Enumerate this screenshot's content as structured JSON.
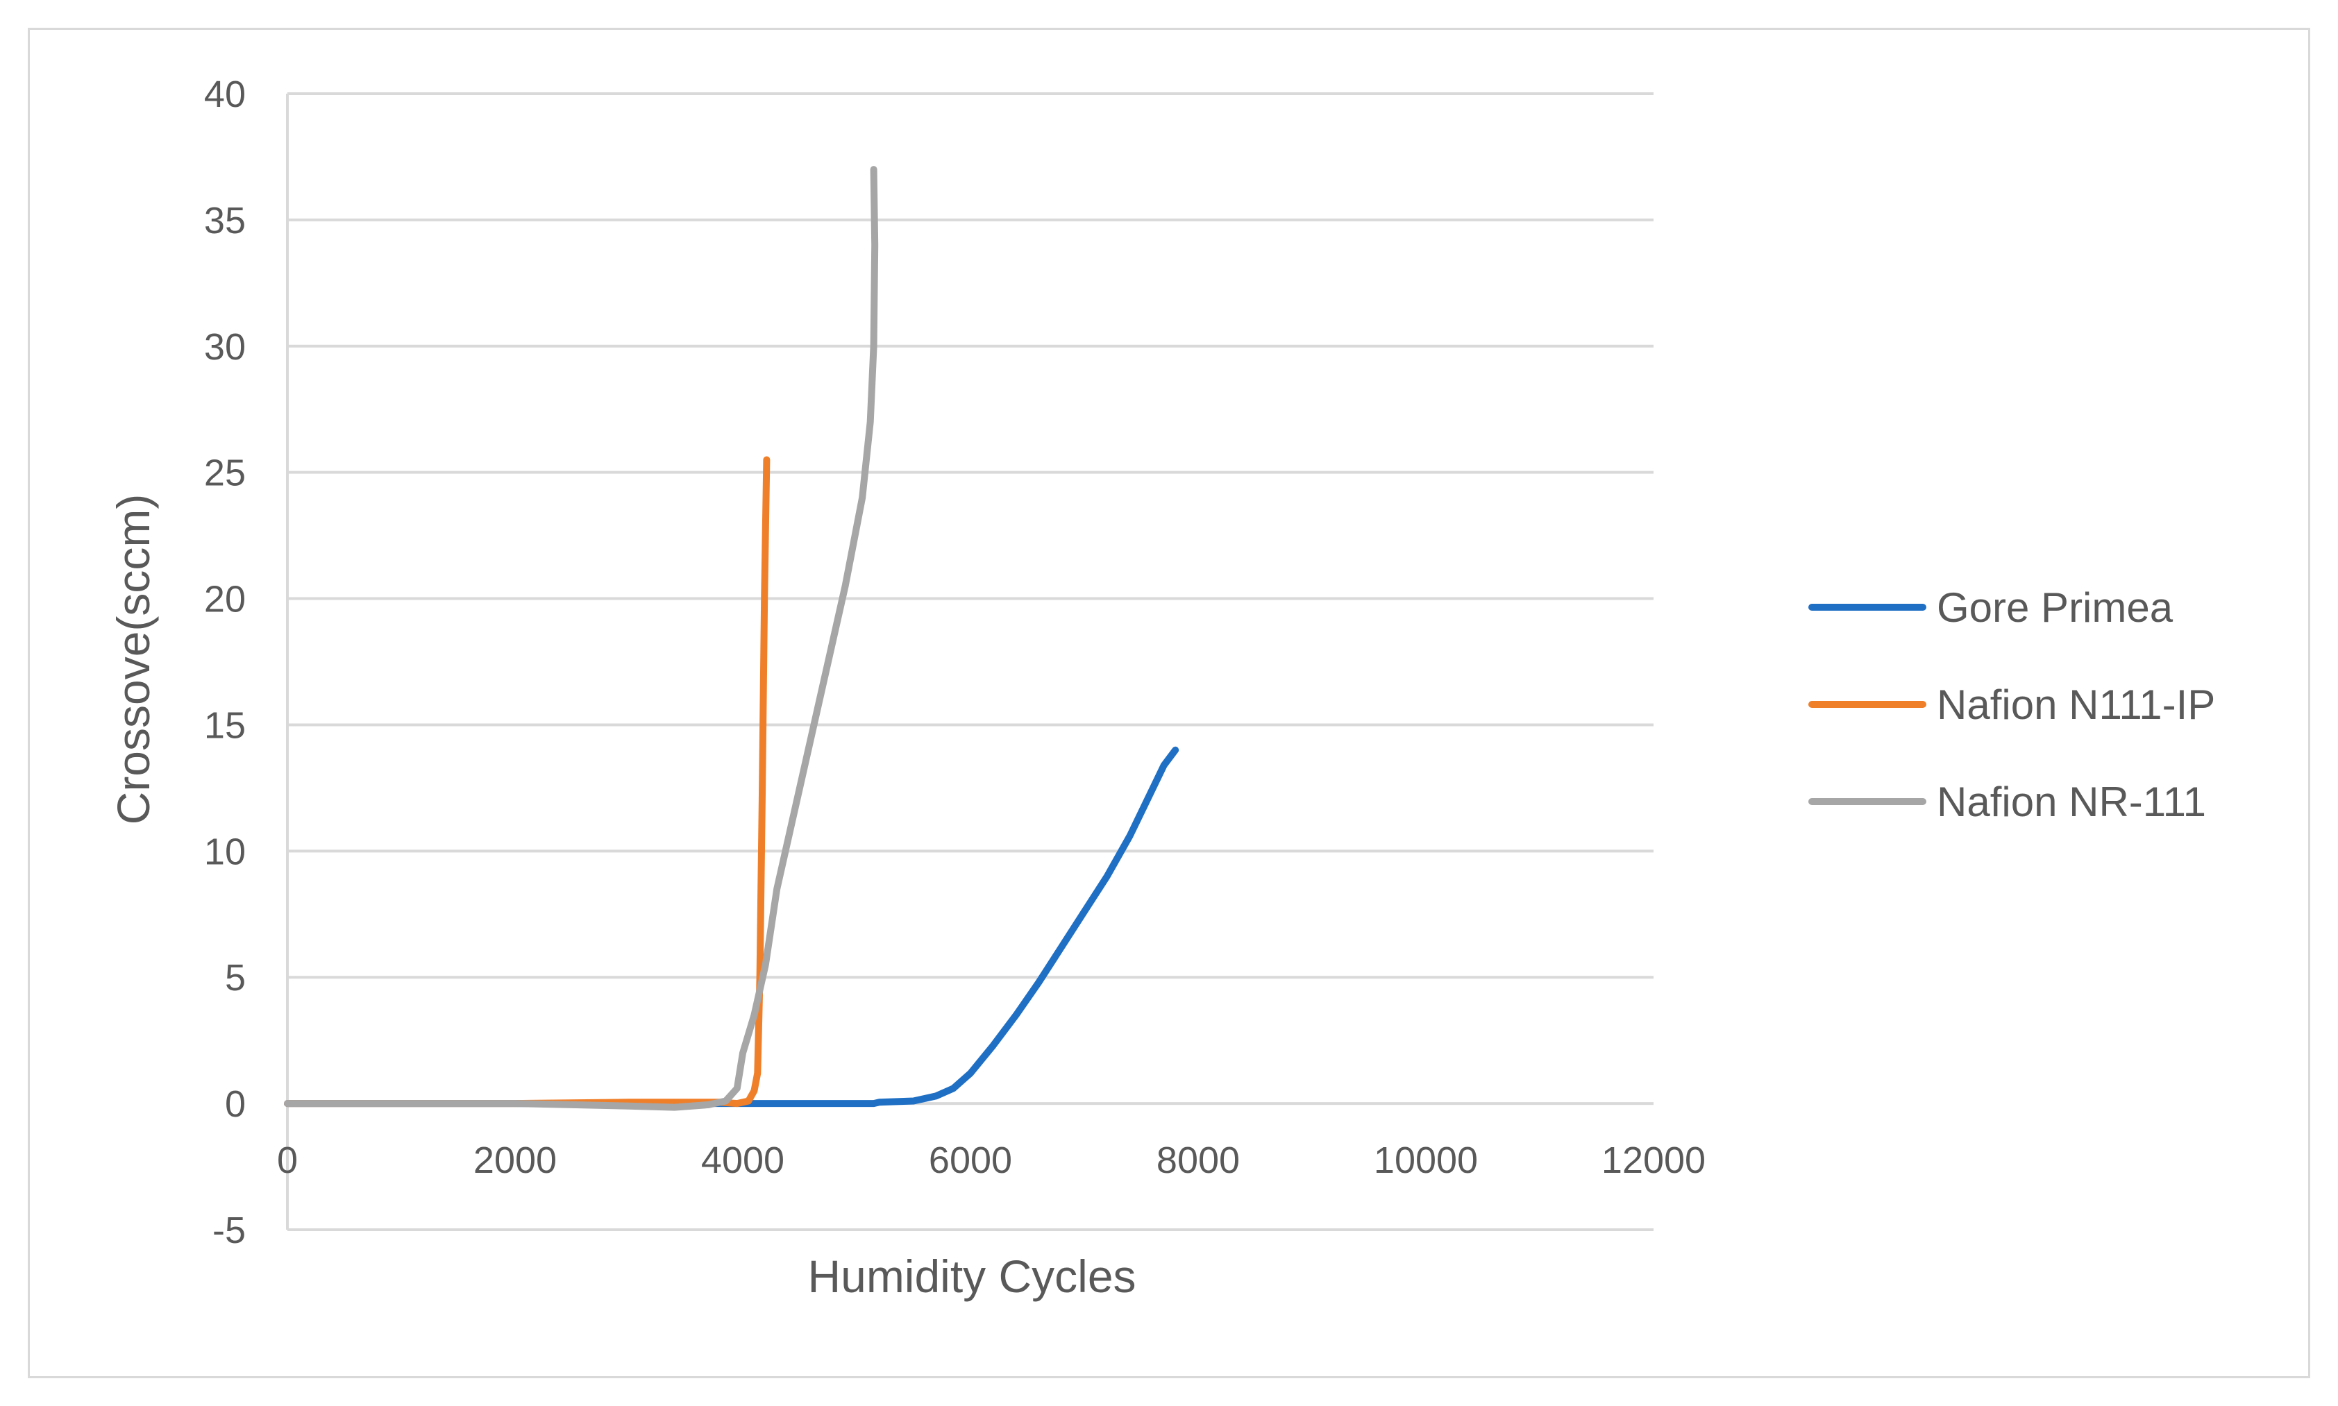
{
  "chart_data": {
    "type": "line",
    "title": "",
    "xlabel": "Humidity Cycles",
    "ylabel": "Crossove(sccm)",
    "xlim": [
      0,
      12000
    ],
    "ylim": [
      -5,
      40
    ],
    "xticks": [
      0,
      2000,
      4000,
      6000,
      8000,
      10000,
      12000
    ],
    "yticks": [
      -5,
      0,
      5,
      10,
      15,
      20,
      25,
      30,
      35,
      40
    ],
    "grid": true,
    "legend_position": "right",
    "series": [
      {
        "name": "Gore Primea",
        "color": "#1f6fc4",
        "points": [
          [
            0,
            0
          ],
          [
            1000,
            0
          ],
          [
            2000,
            0
          ],
          [
            3000,
            0
          ],
          [
            4000,
            0
          ],
          [
            5000,
            0
          ],
          [
            5150,
            0
          ],
          [
            5200,
            0.05
          ],
          [
            5500,
            0.1
          ],
          [
            5700,
            0.3
          ],
          [
            5850,
            0.6
          ],
          [
            6000,
            1.2
          ],
          [
            6200,
            2.3
          ],
          [
            6400,
            3.5
          ],
          [
            6600,
            4.8
          ],
          [
            6800,
            6.2
          ],
          [
            7000,
            7.6
          ],
          [
            7200,
            9.0
          ],
          [
            7400,
            10.6
          ],
          [
            7550,
            12.0
          ],
          [
            7700,
            13.4
          ],
          [
            7800,
            14.0
          ]
        ]
      },
      {
        "name": "Nafion N111-IP",
        "color": "#f07f2a",
        "points": [
          [
            0,
            0
          ],
          [
            1000,
            0
          ],
          [
            2000,
            0
          ],
          [
            3000,
            0.05
          ],
          [
            3500,
            0.05
          ],
          [
            3800,
            0.05
          ],
          [
            3950,
            0
          ],
          [
            4050,
            0.1
          ],
          [
            4100,
            0.5
          ],
          [
            4130,
            1.2
          ],
          [
            4150,
            5.0
          ],
          [
            4170,
            12.0
          ],
          [
            4190,
            20.0
          ],
          [
            4210,
            25.5
          ]
        ]
      },
      {
        "name": "Nafion NR-111",
        "color": "#a6a6a6",
        "points": [
          [
            0,
            0
          ],
          [
            1000,
            0
          ],
          [
            2000,
            0
          ],
          [
            2500,
            -0.05
          ],
          [
            3000,
            -0.1
          ],
          [
            3400,
            -0.15
          ],
          [
            3700,
            -0.05
          ],
          [
            3850,
            0.1
          ],
          [
            3950,
            0.6
          ],
          [
            4000,
            2.0
          ],
          [
            4100,
            3.5
          ],
          [
            4200,
            5.5
          ],
          [
            4300,
            8.5
          ],
          [
            4500,
            12.5
          ],
          [
            4700,
            16.5
          ],
          [
            4900,
            20.5
          ],
          [
            5050,
            24.0
          ],
          [
            5120,
            27.0
          ],
          [
            5150,
            30.0
          ],
          [
            5160,
            34.0
          ],
          [
            5150,
            37.0
          ]
        ]
      }
    ]
  }
}
